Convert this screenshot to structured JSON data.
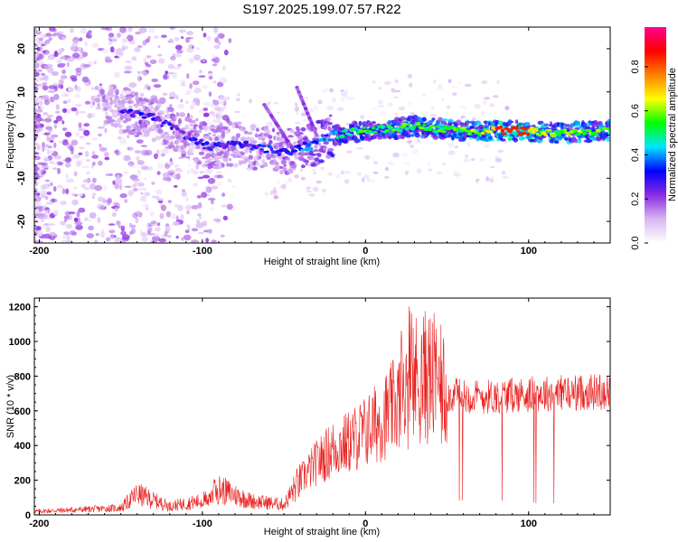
{
  "chart_data": [
    {
      "type": "heatmap",
      "title": "S197.2025.199.07.57.R22",
      "xlabel": "Height of straight line (km)",
      "ylabel": "Frequency (Hz)",
      "xlim": [
        -203,
        150
      ],
      "ylim": [
        -25,
        25
      ],
      "xticks": [
        -200,
        -100,
        0,
        100
      ],
      "yticks": [
        -20,
        -10,
        0,
        10,
        20
      ],
      "colorbar": {
        "label": "Normalized spectral amplitude",
        "range": [
          0.0,
          0.98
        ],
        "ticks": [
          "0.0",
          "0.2",
          "0.4",
          "0.6",
          "0.8"
        ],
        "colors": [
          "#ffffff",
          "#d8b6f2",
          "#8a2be2",
          "#0000ff",
          "#00e5ff",
          "#00ff00",
          "#ffff00",
          "#ff8000",
          "#ff0000",
          "#ff0090"
        ]
      },
      "ridge": [
        {
          "x": -150,
          "f": 6,
          "a": 0.18
        },
        {
          "x": -130,
          "f": 4,
          "a": 0.2
        },
        {
          "x": -110,
          "f": 0,
          "a": 0.2
        },
        {
          "x": -95,
          "f": -3,
          "a": 0.22
        },
        {
          "x": -80,
          "f": -2,
          "a": 0.2
        },
        {
          "x": -65,
          "f": -3,
          "a": 0.22
        },
        {
          "x": -50,
          "f": -4,
          "a": 0.25
        },
        {
          "x": -30,
          "f": -2,
          "a": 0.3
        },
        {
          "x": -20,
          "f": 0,
          "a": 0.35
        },
        {
          "x": 0,
          "f": 1,
          "a": 0.45
        },
        {
          "x": 30,
          "f": 2,
          "a": 0.45
        },
        {
          "x": 60,
          "f": 1,
          "a": 0.5
        },
        {
          "x": 90,
          "f": 1,
          "a": 0.6
        },
        {
          "x": 120,
          "f": 0.5,
          "a": 0.5
        },
        {
          "x": 150,
          "f": 1,
          "a": 0.5
        }
      ]
    },
    {
      "type": "line",
      "xlabel": "Height of straight line (km)",
      "ylabel": "SNR (10 * v/v)",
      "xlim": [
        -203,
        150
      ],
      "ylim": [
        0,
        1250
      ],
      "xticks": [
        -200,
        -100,
        0,
        100
      ],
      "yticks": [
        0,
        200,
        400,
        600,
        800,
        1000,
        1200
      ],
      "color": "#e8201e",
      "envelope": [
        {
          "x": -203,
          "y": 20
        },
        {
          "x": -150,
          "y": 40
        },
        {
          "x": -140,
          "y": 120
        },
        {
          "x": -120,
          "y": 50
        },
        {
          "x": -100,
          "y": 80
        },
        {
          "x": -90,
          "y": 150
        },
        {
          "x": -70,
          "y": 80
        },
        {
          "x": -50,
          "y": 60
        },
        {
          "x": -40,
          "y": 200
        },
        {
          "x": -30,
          "y": 300
        },
        {
          "x": -20,
          "y": 380
        },
        {
          "x": -10,
          "y": 420
        },
        {
          "x": 0,
          "y": 480
        },
        {
          "x": 10,
          "y": 550
        },
        {
          "x": 20,
          "y": 650
        },
        {
          "x": 30,
          "y": 780
        },
        {
          "x": 40,
          "y": 800
        },
        {
          "x": 50,
          "y": 690
        },
        {
          "x": 70,
          "y": 680
        },
        {
          "x": 90,
          "y": 690
        },
        {
          "x": 110,
          "y": 700
        },
        {
          "x": 130,
          "y": 705
        },
        {
          "x": 150,
          "y": 715
        }
      ]
    }
  ]
}
